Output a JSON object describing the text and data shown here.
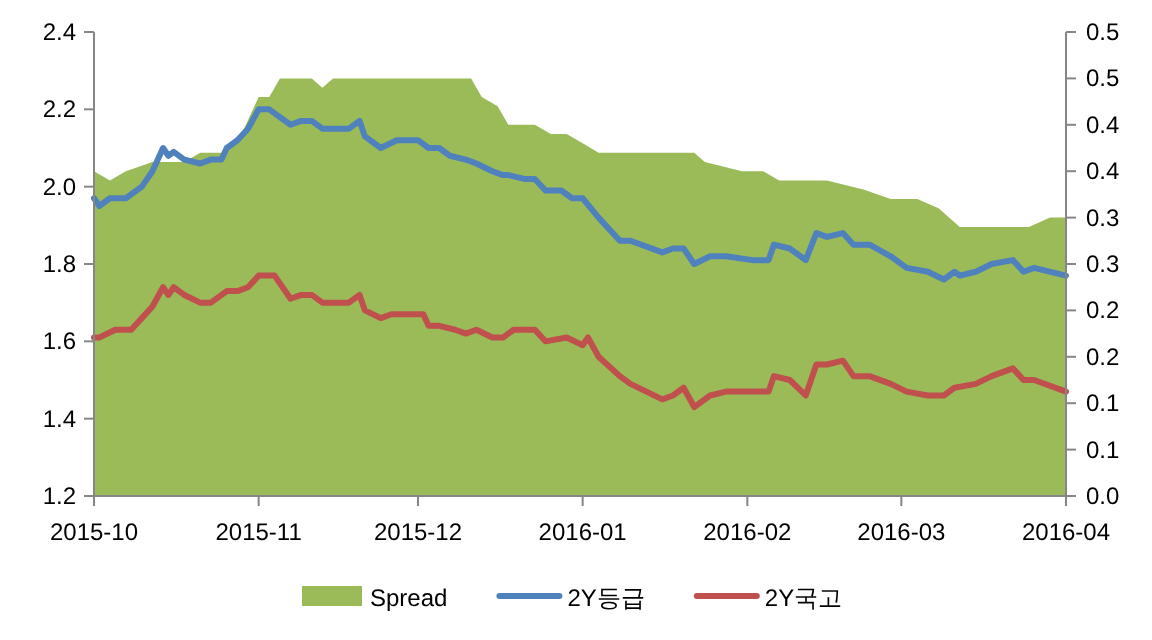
{
  "chart_data": {
    "type": "line",
    "legend": "bottom",
    "xlim": [
      "2015-10-01",
      "2016-04-01"
    ],
    "xticks": [
      {
        "value": "2015-10-01",
        "label": "2015-10"
      },
      {
        "value": "2015-11-01",
        "label": "2015-11"
      },
      {
        "value": "2015-12-01",
        "label": "2015-12"
      },
      {
        "value": "2016-01-01",
        "label": "2016-01"
      },
      {
        "value": "2016-02-01",
        "label": "2016-02"
      },
      {
        "value": "2016-03-01",
        "label": "2016-03"
      },
      {
        "value": "2016-04-01",
        "label": "2016-04"
      }
    ],
    "ylim": [
      1.2,
      2.4
    ],
    "yticks": [
      {
        "value": 1.2,
        "label": "1.2"
      },
      {
        "value": 1.4,
        "label": "1.4"
      },
      {
        "value": 1.6,
        "label": "1.6"
      },
      {
        "value": 1.8,
        "label": "1.8"
      },
      {
        "value": 2.0,
        "label": "2.0"
      },
      {
        "value": 2.2,
        "label": "2.2"
      },
      {
        "value": 2.4,
        "label": "2.4"
      }
    ],
    "y2lim": [
      0,
      0.5
    ],
    "y2ticks": [
      {
        "value": 0,
        "label": "0.0"
      },
      {
        "value": 0.05,
        "label": "0.1"
      },
      {
        "value": 0.1,
        "label": "0.1"
      },
      {
        "value": 0.15,
        "label": "0.2"
      },
      {
        "value": 0.2,
        "label": "0.2"
      },
      {
        "value": 0.25,
        "label": "0.3"
      },
      {
        "value": 0.3,
        "label": "0.3"
      },
      {
        "value": 0.35,
        "label": "0.4"
      },
      {
        "value": 0.4,
        "label": "0.4"
      },
      {
        "value": 0.45,
        "label": "0.5"
      },
      {
        "value": 0.5,
        "label": "0.5"
      }
    ],
    "series": [
      {
        "name": "Spread",
        "type": "area",
        "axis": "y2",
        "color": "#9bbb59",
        "x": [
          "2015-10-01",
          "2015-10-04",
          "2015-10-07",
          "2015-10-12",
          "2015-10-15",
          "2015-10-18",
          "2015-10-21",
          "2015-10-25",
          "2015-10-28",
          "2015-11-01",
          "2015-11-03",
          "2015-11-05",
          "2015-11-11",
          "2015-11-13",
          "2015-11-15",
          "2015-11-20",
          "2015-11-27",
          "2015-12-01",
          "2015-12-02",
          "2015-12-11",
          "2015-12-13",
          "2015-12-16",
          "2015-12-18",
          "2015-12-23",
          "2015-12-26",
          "2015-12-29",
          "2016-01-01",
          "2016-01-04",
          "2016-01-08",
          "2016-01-18",
          "2016-01-22",
          "2016-01-24",
          "2016-01-31",
          "2016-02-04",
          "2016-02-07",
          "2016-02-11",
          "2016-02-16",
          "2016-02-23",
          "2016-02-28",
          "2016-03-04",
          "2016-03-08",
          "2016-03-12",
          "2016-03-17",
          "2016-03-25",
          "2016-03-29",
          "2016-04-01"
        ],
        "values": [
          0.35,
          0.34,
          0.35,
          0.36,
          0.36,
          0.36,
          0.37,
          0.37,
          0.38,
          0.43,
          0.43,
          0.45,
          0.45,
          0.44,
          0.45,
          0.45,
          0.45,
          0.45,
          0.45,
          0.45,
          0.43,
          0.42,
          0.4,
          0.4,
          0.39,
          0.39,
          0.38,
          0.37,
          0.37,
          0.37,
          0.37,
          0.36,
          0.35,
          0.35,
          0.34,
          0.34,
          0.34,
          0.33,
          0.32,
          0.32,
          0.31,
          0.29,
          0.29,
          0.29,
          0.3,
          0.3
        ]
      },
      {
        "name": "2Y등급",
        "color": "#4f81bd",
        "x": [
          "2015-10-01",
          "2015-10-02",
          "2015-10-04",
          "2015-10-07",
          "2015-10-10",
          "2015-10-12",
          "2015-10-14",
          "2015-10-15",
          "2015-10-16",
          "2015-10-18",
          "2015-10-21",
          "2015-10-23",
          "2015-10-25",
          "2015-10-26",
          "2015-10-28",
          "2015-10-30",
          "2015-11-01",
          "2015-11-03",
          "2015-11-05",
          "2015-11-07",
          "2015-11-09",
          "2015-11-11",
          "2015-11-13",
          "2015-11-15",
          "2015-11-18",
          "2015-11-20",
          "2015-11-21",
          "2015-11-24",
          "2015-11-27",
          "2015-12-01",
          "2015-12-02",
          "2015-12-03",
          "2015-12-05",
          "2015-12-07",
          "2015-12-10",
          "2015-12-12",
          "2015-12-15",
          "2015-12-17",
          "2015-12-18",
          "2015-12-21",
          "2015-12-23",
          "2015-12-25",
          "2015-12-28",
          "2015-12-30",
          "2016-01-01",
          "2016-01-04",
          "2016-01-08",
          "2016-01-10",
          "2016-01-16",
          "2016-01-18",
          "2016-01-20",
          "2016-01-22",
          "2016-01-25",
          "2016-01-28",
          "2016-02-02",
          "2016-02-05",
          "2016-02-06",
          "2016-02-09",
          "2016-02-12",
          "2016-02-14",
          "2016-02-16",
          "2016-02-19",
          "2016-02-21",
          "2016-02-24",
          "2016-02-28",
          "2016-03-02",
          "2016-03-06",
          "2016-03-09",
          "2016-03-11",
          "2016-03-12",
          "2016-03-15",
          "2016-03-18",
          "2016-03-22",
          "2016-03-24",
          "2016-03-26",
          "2016-04-01"
        ],
        "values": [
          1.97,
          1.95,
          1.97,
          1.97,
          2.0,
          2.04,
          2.1,
          2.08,
          2.09,
          2.07,
          2.06,
          2.07,
          2.07,
          2.1,
          2.12,
          2.15,
          2.2,
          2.2,
          2.18,
          2.16,
          2.17,
          2.17,
          2.15,
          2.15,
          2.15,
          2.17,
          2.13,
          2.1,
          2.12,
          2.12,
          2.11,
          2.1,
          2.1,
          2.08,
          2.07,
          2.06,
          2.04,
          2.03,
          2.03,
          2.02,
          2.02,
          1.99,
          1.99,
          1.97,
          1.97,
          1.92,
          1.86,
          1.86,
          1.83,
          1.84,
          1.84,
          1.8,
          1.82,
          1.82,
          1.81,
          1.81,
          1.85,
          1.84,
          1.81,
          1.88,
          1.87,
          1.88,
          1.85,
          1.85,
          1.82,
          1.79,
          1.78,
          1.76,
          1.78,
          1.77,
          1.78,
          1.8,
          1.81,
          1.78,
          1.79,
          1.77
        ]
      },
      {
        "name": "2Y국고",
        "color": "#c0504d",
        "x": [
          "2015-10-01",
          "2015-10-02",
          "2015-10-05",
          "2015-10-08",
          "2015-10-10",
          "2015-10-12",
          "2015-10-14",
          "2015-10-15",
          "2015-10-16",
          "2015-10-18",
          "2015-10-21",
          "2015-10-23",
          "2015-10-26",
          "2015-10-28",
          "2015-10-30",
          "2015-11-01",
          "2015-11-04",
          "2015-11-07",
          "2015-11-09",
          "2015-11-11",
          "2015-11-13",
          "2015-11-15",
          "2015-11-18",
          "2015-11-20",
          "2015-11-21",
          "2015-11-24",
          "2015-11-26",
          "2015-12-02",
          "2015-12-03",
          "2015-12-05",
          "2015-12-08",
          "2015-12-10",
          "2015-12-12",
          "2015-12-15",
          "2015-12-17",
          "2015-12-19",
          "2015-12-23",
          "2015-12-25",
          "2015-12-29",
          "2016-01-01",
          "2016-01-02",
          "2016-01-04",
          "2016-01-08",
          "2016-01-10",
          "2016-01-16",
          "2016-01-18",
          "2016-01-20",
          "2016-01-22",
          "2016-01-25",
          "2016-01-28",
          "2016-02-02",
          "2016-02-05",
          "2016-02-06",
          "2016-02-09",
          "2016-02-12",
          "2016-02-14",
          "2016-02-16",
          "2016-02-19",
          "2016-02-21",
          "2016-02-24",
          "2016-02-28",
          "2016-03-02",
          "2016-03-06",
          "2016-03-09",
          "2016-03-11",
          "2016-03-15",
          "2016-03-18",
          "2016-03-22",
          "2016-03-24",
          "2016-03-26",
          "2016-04-01"
        ],
        "values": [
          1.61,
          1.61,
          1.63,
          1.63,
          1.66,
          1.69,
          1.74,
          1.72,
          1.74,
          1.72,
          1.7,
          1.7,
          1.73,
          1.73,
          1.74,
          1.77,
          1.77,
          1.71,
          1.72,
          1.72,
          1.7,
          1.7,
          1.7,
          1.72,
          1.68,
          1.66,
          1.67,
          1.67,
          1.64,
          1.64,
          1.63,
          1.62,
          1.63,
          1.61,
          1.61,
          1.63,
          1.63,
          1.6,
          1.61,
          1.59,
          1.61,
          1.56,
          1.51,
          1.49,
          1.45,
          1.46,
          1.48,
          1.43,
          1.46,
          1.47,
          1.47,
          1.47,
          1.51,
          1.5,
          1.46,
          1.54,
          1.54,
          1.55,
          1.51,
          1.51,
          1.49,
          1.47,
          1.46,
          1.46,
          1.48,
          1.49,
          1.51,
          1.53,
          1.5,
          1.5,
          1.47
        ]
      }
    ]
  }
}
